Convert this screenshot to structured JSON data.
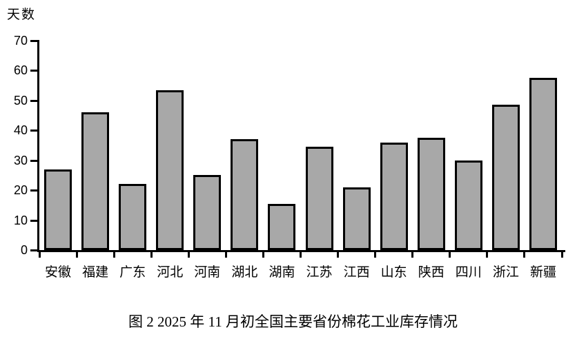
{
  "figure": {
    "ylabel": "天数",
    "caption": "图 2  2025 年 11 月初全国主要省份棉花工业库存情况"
  },
  "chart_data": {
    "type": "bar",
    "title": "图2 2025年11月初全国主要省份棉花工业库存情况",
    "ylabel": "天数",
    "xlabel": "",
    "unit": "天",
    "categories": [
      "安徽",
      "福建",
      "广东",
      "河北",
      "河南",
      "湖北",
      "湖南",
      "江苏",
      "江西",
      "山东",
      "陕西",
      "四川",
      "浙江",
      "新疆"
    ],
    "values": [
      27,
      46,
      22,
      53.5,
      25,
      37,
      15.5,
      34.5,
      21,
      36,
      37.5,
      30,
      48.5,
      57.5
    ],
    "ylim": [
      0,
      70
    ],
    "yticks": [
      0,
      10,
      20,
      30,
      40,
      50,
      60,
      70
    ],
    "grid": false,
    "legend": "none",
    "bar_fill_color": "#a8a8a8",
    "bar_border_color": "#000000",
    "axis_color": "#000000",
    "text_color": "#000000",
    "background_color": "#ffffff"
  }
}
